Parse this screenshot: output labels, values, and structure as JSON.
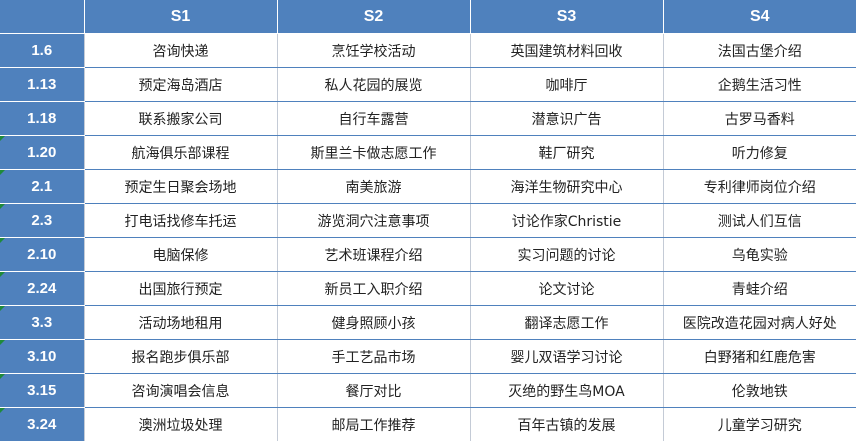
{
  "colors": {
    "header_bg": "#4f81bd",
    "header_text": "#ffffff",
    "cell_text": "#222222"
  },
  "columns": [
    "",
    "S1",
    "S2",
    "S3",
    "S4"
  ],
  "rows": [
    {
      "label": "1.6",
      "cells": [
        "咨询快递",
        "烹饪学校活动",
        "英国建筑材料回收",
        "法国古堡介绍"
      ]
    },
    {
      "label": "1.13",
      "cells": [
        "预定海岛酒店",
        "私人花园的展览",
        "咖啡厅",
        "企鹅生活习性"
      ]
    },
    {
      "label": "1.18",
      "cells": [
        "联系搬家公司",
        "自行车露营",
        "潜意识广告",
        "古罗马香料"
      ]
    },
    {
      "label": "1.20",
      "cells": [
        "航海俱乐部课程",
        "斯里兰卡做志愿工作",
        "鞋厂研究",
        "听力修复"
      ]
    },
    {
      "label": "2.1",
      "cells": [
        "预定生日聚会场地",
        "南美旅游",
        "海洋生物研究中心",
        "专利律师岗位介绍"
      ]
    },
    {
      "label": "2.3",
      "cells": [
        "打电话找修车托运",
        "游览洞穴注意事项",
        "讨论作家Christie",
        "测试人们互信"
      ]
    },
    {
      "label": "2.10",
      "cells": [
        "电脑保修",
        "艺术班课程介绍",
        "实习问题的讨论",
        "乌龟实验"
      ]
    },
    {
      "label": "2.24",
      "cells": [
        "出国旅行预定",
        "新员工入职介绍",
        "论文讨论",
        "青蛙介绍"
      ]
    },
    {
      "label": "3.3",
      "cells": [
        "活动场地租用",
        "健身照顾小孩",
        "翻译志愿工作",
        "医院改造花园对病人好处"
      ]
    },
    {
      "label": "3.10",
      "cells": [
        "报名跑步俱乐部",
        "手工艺品市场",
        "婴儿双语学习讨论",
        "白野猪和红鹿危害"
      ]
    },
    {
      "label": "3.15",
      "cells": [
        "咨询演唱会信息",
        "餐厅对比",
        "灭绝的野生鸟MOA",
        "伦敦地铁"
      ]
    },
    {
      "label": "3.24",
      "cells": [
        "澳洲垃圾处理",
        "邮局工作推荐",
        "百年古镇的发展",
        "儿童学习研究"
      ]
    }
  ]
}
